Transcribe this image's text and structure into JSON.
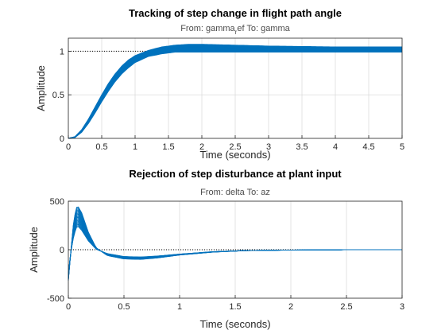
{
  "chart_data": [
    {
      "type": "line",
      "title": "Tracking of step change in flight path angle",
      "subtitle_prefix": "From: gamma",
      "subtitle_sub": "r",
      "subtitle_suffix": "ef  To: gamma",
      "xlabel": "Time (seconds)",
      "ylabel": "Amplitude",
      "xlim": [
        0,
        5
      ],
      "ylim": [
        0,
        1.15
      ],
      "xticks": [
        0,
        0.5,
        1,
        1.5,
        2,
        2.5,
        3,
        3.5,
        4,
        4.5,
        5
      ],
      "xtick_labels": [
        "0",
        "0.5",
        "1",
        "1.5",
        "2",
        "2.5",
        "3",
        "3.5",
        "4",
        "4.5",
        "5"
      ],
      "yticks": [
        0,
        0.5,
        1
      ],
      "ytick_labels": [
        "0",
        "0.5",
        "1"
      ],
      "grid": true,
      "reference_line": 1,
      "line_color": "#0072bd",
      "series_count": 20,
      "representative_series": [
        {
          "x": [
            0,
            0.1,
            0.2,
            0.3,
            0.4,
            0.5,
            0.6,
            0.7,
            0.8,
            0.9,
            1.0,
            1.2,
            1.4,
            1.6,
            1.8,
            2.0,
            2.5,
            3.0,
            4.0,
            5.0
          ],
          "y": [
            0,
            0.02,
            0.1,
            0.22,
            0.36,
            0.5,
            0.63,
            0.74,
            0.83,
            0.9,
            0.95,
            1.01,
            1.05,
            1.07,
            1.08,
            1.08,
            1.07,
            1.06,
            1.05,
            1.05
          ]
        },
        {
          "x": [
            0,
            0.1,
            0.2,
            0.3,
            0.4,
            0.5,
            0.6,
            0.7,
            0.8,
            0.9,
            1.0,
            1.2,
            1.4,
            1.6,
            1.8,
            2.0,
            2.5,
            3.0,
            4.0,
            5.0
          ],
          "y": [
            0,
            0.01,
            0.07,
            0.17,
            0.29,
            0.42,
            0.54,
            0.65,
            0.74,
            0.81,
            0.87,
            0.94,
            0.97,
            0.99,
            0.99,
            0.99,
            0.99,
            0.99,
            0.99,
            0.99
          ]
        }
      ]
    },
    {
      "type": "line",
      "title": "Rejection of step disturbance at plant input",
      "subtitle": "From: delta  To: az",
      "xlabel": "Time (seconds)",
      "ylabel": "Amplitude",
      "xlim": [
        0,
        3
      ],
      "ylim": [
        -500,
        500
      ],
      "xticks": [
        0,
        0.5,
        1,
        1.5,
        2,
        2.5,
        3
      ],
      "xtick_labels": [
        "0",
        "0.5",
        "1",
        "1.5",
        "2",
        "2.5",
        "3"
      ],
      "yticks": [
        -500,
        0,
        500
      ],
      "ytick_labels": [
        "-500",
        "0",
        "500"
      ],
      "grid": true,
      "reference_line": 0,
      "line_color": "#0072bd",
      "series_count": 20,
      "representative_series": [
        {
          "x": [
            0,
            0.02,
            0.05,
            0.08,
            0.12,
            0.18,
            0.25,
            0.35,
            0.5,
            0.65,
            0.8,
            1.0,
            1.3,
            1.6,
            2.0,
            2.5,
            3.0
          ],
          "y": [
            -320,
            -50,
            320,
            460,
            380,
            180,
            20,
            -60,
            -95,
            -100,
            -85,
            -55,
            -25,
            -10,
            -4,
            -1,
            0
          ]
        },
        {
          "x": [
            0,
            0.02,
            0.05,
            0.08,
            0.12,
            0.18,
            0.25,
            0.35,
            0.5,
            0.65,
            0.8,
            1.0,
            1.3,
            1.6,
            2.0,
            2.5,
            3.0
          ],
          "y": [
            -250,
            -40,
            150,
            250,
            200,
            90,
            5,
            -40,
            -70,
            -75,
            -65,
            -45,
            -20,
            -8,
            -3,
            -1,
            0
          ]
        }
      ]
    }
  ]
}
